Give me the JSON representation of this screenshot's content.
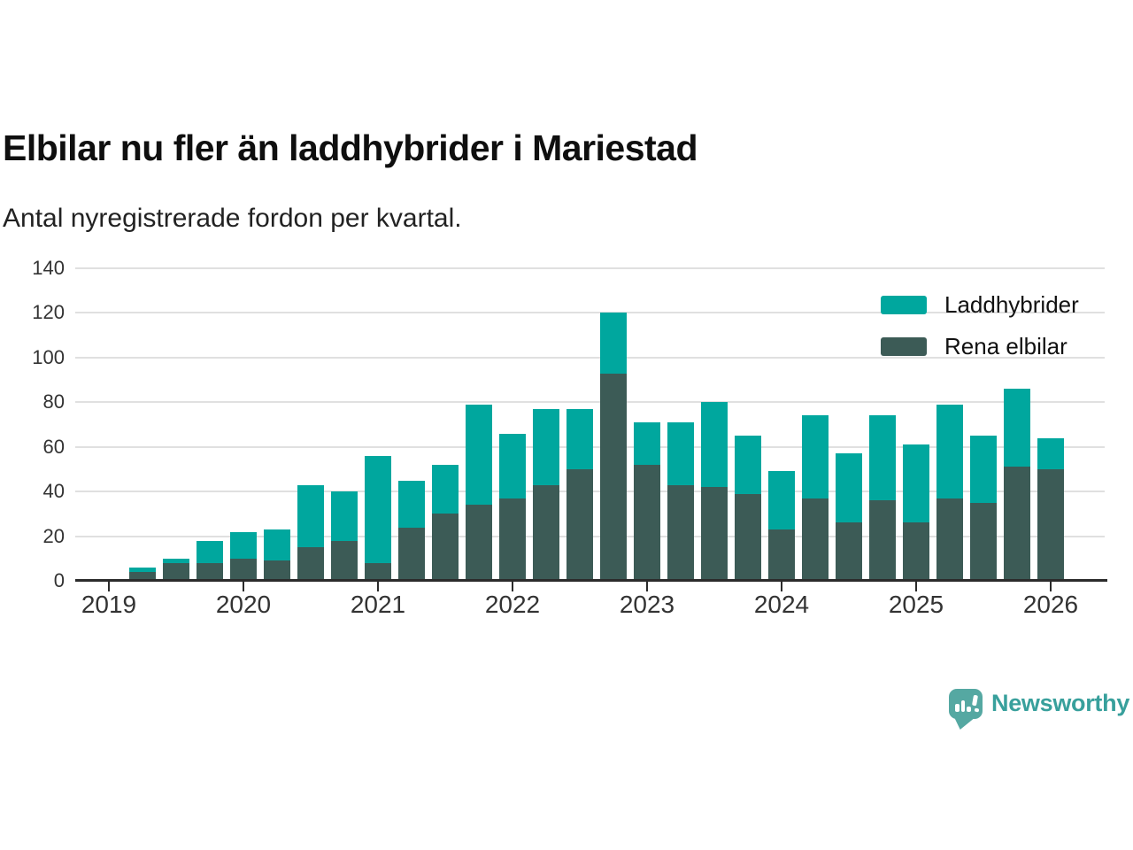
{
  "title": "Elbilar nu fler än laddhybrider i Mariestad",
  "subtitle": "Antal nyregistrerade fordon per kvartal.",
  "colors": {
    "laddhybrider": "#00a79e",
    "rena_elbilar": "#3c5b56",
    "axis": "#2b2b2b",
    "gridline": "#e0e0e0",
    "tick_label": "#333333",
    "logo_bubble": "#55a8a2",
    "logo_text": "#38a09c"
  },
  "legend": [
    {
      "label": "Laddhybrider",
      "color": "#00a79e"
    },
    {
      "label": "Rena elbilar",
      "color": "#3c5b56"
    }
  ],
  "branding": {
    "name": "Newsworthy",
    "icon": "newsworthy-speech-bubble-barchart-icon"
  },
  "chart_data": {
    "type": "bar",
    "stacked": true,
    "title": "Elbilar nu fler än laddhybrider i Mariestad",
    "subtitle": "Antal nyregistrerade fordon per kvartal.",
    "xlabel": "",
    "ylabel": "",
    "categories": [
      "2019 Q2",
      "2019 Q3",
      "2019 Q4",
      "2020 Q1",
      "2020 Q2",
      "2020 Q3",
      "2020 Q4",
      "2021 Q1",
      "2021 Q2",
      "2021 Q3",
      "2021 Q4",
      "2022 Q1",
      "2022 Q2",
      "2022 Q3",
      "2022 Q4",
      "2023 Q1",
      "2023 Q2",
      "2023 Q3",
      "2023 Q4",
      "2024 Q1",
      "2024 Q2",
      "2024 Q3",
      "2024 Q4",
      "2025 Q1",
      "2025 Q2",
      "2025 Q3",
      "2025 Q4",
      "2026 Q1"
    ],
    "series": [
      {
        "name": "Laddhybrider",
        "color": "#00a79e",
        "values": [
          2,
          2,
          10,
          12,
          14,
          28,
          22,
          48,
          21,
          22,
          45,
          29,
          34,
          27,
          27,
          19,
          28,
          38,
          26,
          26,
          37,
          31,
          38,
          35,
          42,
          30,
          35,
          14
        ]
      },
      {
        "name": "Rena elbilar",
        "color": "#3c5b56",
        "values": [
          4,
          8,
          8,
          10,
          9,
          15,
          18,
          8,
          24,
          30,
          34,
          37,
          43,
          50,
          93,
          52,
          43,
          42,
          39,
          23,
          37,
          26,
          36,
          26,
          37,
          35,
          51,
          50
        ]
      }
    ],
    "stack_bottom_to_top": [
      "Rena elbilar",
      "Laddhybrider"
    ],
    "totals": [
      6,
      10,
      18,
      22,
      23,
      43,
      40,
      56,
      45,
      52,
      79,
      66,
      77,
      77,
      120,
      71,
      71,
      80,
      65,
      49,
      74,
      57,
      74,
      61,
      79,
      65,
      86,
      64
    ],
    "x_tick_labels": [
      "2019",
      "2020",
      "2021",
      "2022",
      "2023",
      "2024",
      "2025",
      "2026"
    ],
    "y_ticks": [
      0,
      20,
      40,
      60,
      80,
      100,
      120,
      140
    ],
    "ylim": [
      0,
      140
    ],
    "grid": "horizontal",
    "legend_position": "top-right"
  }
}
